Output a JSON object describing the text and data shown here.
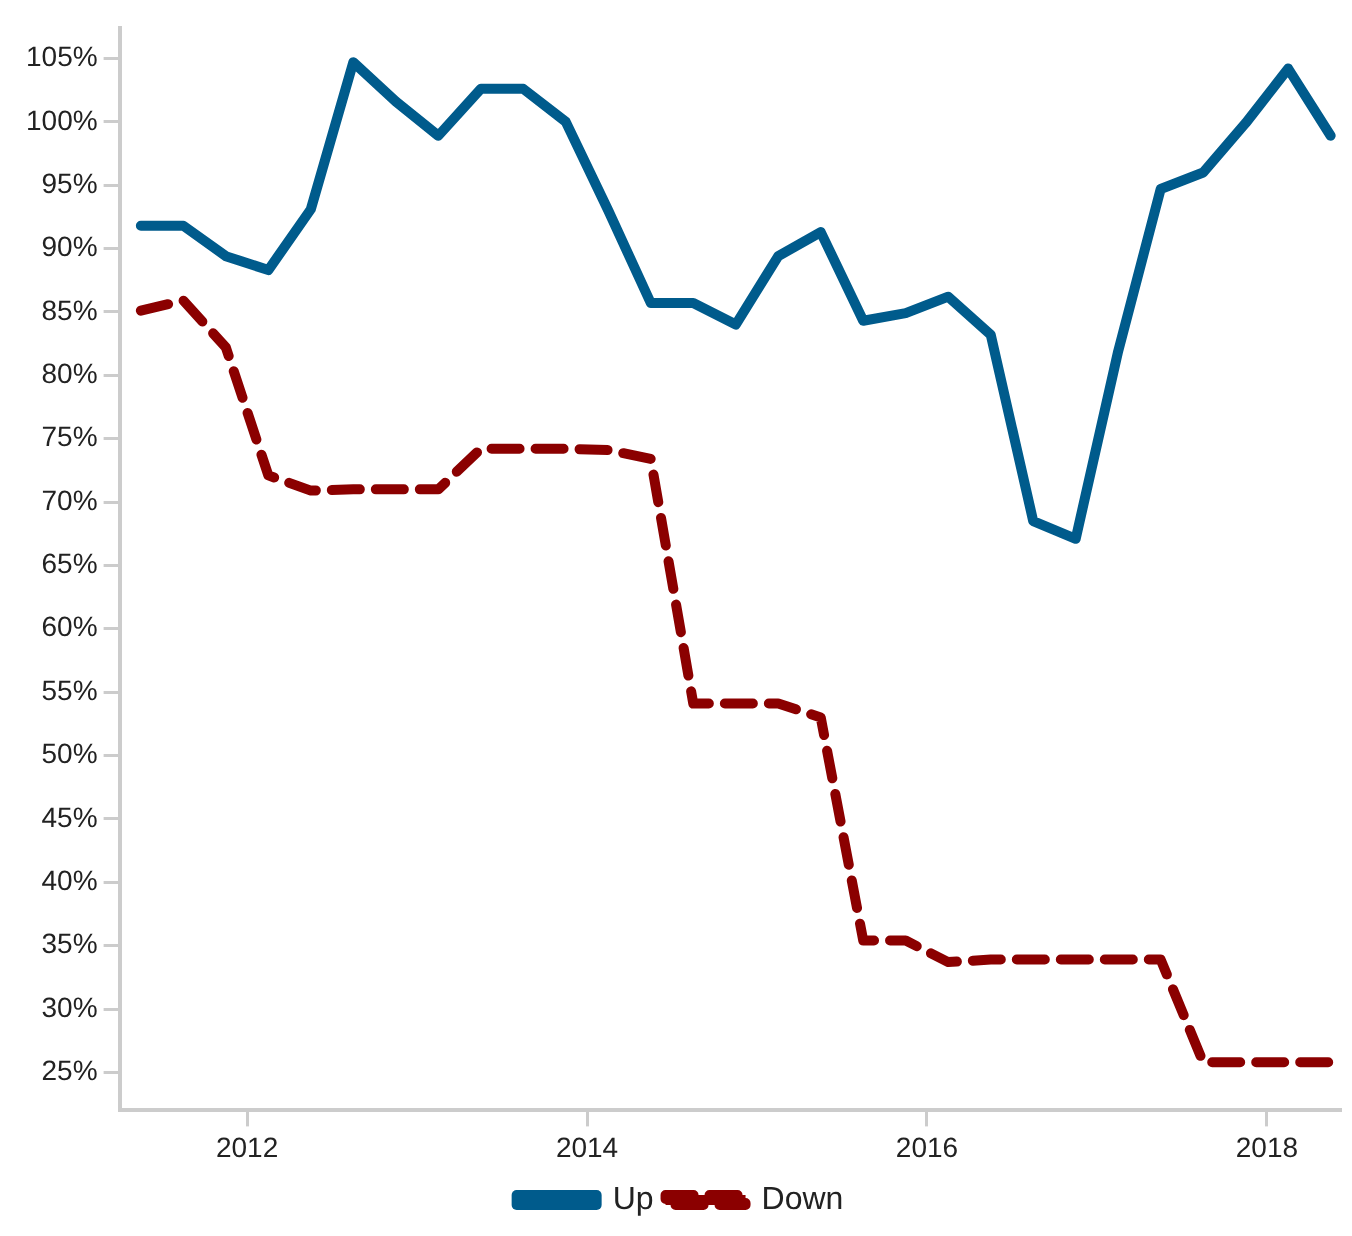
{
  "chart_data": {
    "type": "line",
    "x": [
      2011.375,
      2011.625,
      2011.875,
      2012.125,
      2012.375,
      2012.625,
      2012.875,
      2013.125,
      2013.375,
      2013.625,
      2013.875,
      2014.125,
      2014.375,
      2014.625,
      2014.875,
      2015.125,
      2015.375,
      2015.625,
      2015.875,
      2016.125,
      2016.375,
      2016.625,
      2016.875,
      2017.125,
      2017.375,
      2017.625,
      2017.875,
      2018.125,
      2018.375
    ],
    "series": [
      {
        "name": "Up",
        "color": "#005b8c",
        "line_style": "solid",
        "values": [
          91.8,
          91.8,
          89.4,
          88.3,
          93.1,
          104.7,
          101.6,
          98.9,
          102.6,
          102.6,
          100,
          93,
          85.7,
          85.7,
          84,
          89.4,
          91.3,
          84.3,
          84.9,
          86.2,
          83.2,
          68.5,
          67.1,
          81.9,
          94.7,
          96,
          99.9,
          104.2,
          98.9
        ]
      },
      {
        "name": "Down",
        "color": "#8b0000",
        "line_style": "dashed",
        "values": [
          85.1,
          85.9,
          82.2,
          72.1,
          70.9,
          71,
          71,
          71,
          74.2,
          74.2,
          74.2,
          74.1,
          73.4,
          54.1,
          54.1,
          54.1,
          53,
          35.4,
          35.4,
          33.7,
          33.9,
          33.9,
          33.9,
          33.9,
          33.9,
          25.8,
          25.8,
          25.8,
          25.8
        ]
      }
    ],
    "xlim": [
      2011.25,
      2018.43
    ],
    "xticks": [
      2012,
      2014,
      2016,
      2018
    ],
    "ylim": [
      22,
      107.4
    ],
    "yticks": [
      {
        "value": 25,
        "label": "25%"
      },
      {
        "value": 30,
        "label": "30%"
      },
      {
        "value": 35,
        "label": "35%"
      },
      {
        "value": 40,
        "label": "40%"
      },
      {
        "value": 45,
        "label": "45%"
      },
      {
        "value": 50,
        "label": "50%"
      },
      {
        "value": 55,
        "label": "55%"
      },
      {
        "value": 60,
        "label": "60%"
      },
      {
        "value": 65,
        "label": "65%"
      },
      {
        "value": 70,
        "label": "70%"
      },
      {
        "value": 75,
        "label": "75%"
      },
      {
        "value": 80,
        "label": "80%"
      },
      {
        "value": 85,
        "label": "85%"
      },
      {
        "value": 90,
        "label": "90%"
      },
      {
        "value": 95,
        "label": "95%"
      },
      {
        "value": 100,
        "label": "100%"
      },
      {
        "value": 105,
        "label": "105%"
      }
    ],
    "grid": false,
    "legend": "bottom",
    "marker": "none"
  }
}
